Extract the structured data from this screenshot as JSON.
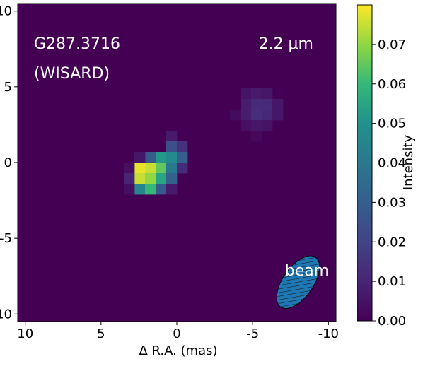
{
  "chart_data": {
    "type": "heatmap",
    "title": "",
    "annotations": {
      "source": "G287.3716",
      "instrument": "(WISARD)",
      "wavelength": "2.2 μm",
      "beam_label": "beam"
    },
    "xlabel": "Δ R.A. (mas)",
    "ylabel": "",
    "xlim": [
      10.5,
      -10.5
    ],
    "ylim": [
      -10.5,
      10.5
    ],
    "x_ticks": [
      10,
      5,
      0,
      -5,
      -10
    ],
    "y_ticks": [
      10,
      5,
      0,
      -5,
      -10
    ],
    "x_tick_labels": [
      "10",
      "5",
      "0",
      "-5",
      "-10"
    ],
    "y_tick_labels": [
      "10",
      "5",
      "0",
      "-5",
      "-10"
    ],
    "pixel_size_mas": 0.7,
    "colormap": "viridis",
    "colorbar": {
      "label": "Intensity",
      "min": 0.0,
      "max": 0.08,
      "ticks": [
        0.0,
        0.01,
        0.02,
        0.03,
        0.04,
        0.05,
        0.06,
        0.07
      ],
      "tick_labels": [
        "0.00",
        "0.01",
        "0.02",
        "0.03",
        "0.04",
        "0.05",
        "0.06",
        "0.07"
      ]
    },
    "pixels": [
      {
        "x": 0.35,
        "y": 1.75,
        "v": 0.007
      },
      {
        "x": 0.35,
        "y": 1.05,
        "v": 0.024
      },
      {
        "x": -0.35,
        "y": 1.05,
        "v": 0.014
      },
      {
        "x": 1.05,
        "y": 0.35,
        "v": 0.052
      },
      {
        "x": 0.35,
        "y": 0.35,
        "v": 0.047
      },
      {
        "x": -0.35,
        "y": 0.35,
        "v": 0.03
      },
      {
        "x": 1.75,
        "y": 0.35,
        "v": 0.028
      },
      {
        "x": 2.45,
        "y": 0.35,
        "v": 0.006
      },
      {
        "x": 1.75,
        "y": -0.35,
        "v": 0.075
      },
      {
        "x": 1.05,
        "y": -0.35,
        "v": 0.065
      },
      {
        "x": 2.45,
        "y": -0.35,
        "v": 0.078
      },
      {
        "x": 0.35,
        "y": -0.35,
        "v": 0.04
      },
      {
        "x": -0.35,
        "y": -0.35,
        "v": 0.012
      },
      {
        "x": 3.15,
        "y": -0.35,
        "v": 0.004
      },
      {
        "x": 2.45,
        "y": -1.05,
        "v": 0.075
      },
      {
        "x": 1.75,
        "y": -1.05,
        "v": 0.07
      },
      {
        "x": 1.05,
        "y": -1.05,
        "v": 0.055
      },
      {
        "x": 0.35,
        "y": -1.05,
        "v": 0.03
      },
      {
        "x": 3.15,
        "y": -1.05,
        "v": 0.01
      },
      {
        "x": 2.45,
        "y": -1.75,
        "v": 0.045
      },
      {
        "x": 1.75,
        "y": -1.75,
        "v": 0.06
      },
      {
        "x": 1.05,
        "y": -1.75,
        "v": 0.028
      },
      {
        "x": 0.35,
        "y": -1.75,
        "v": 0.007
      },
      {
        "x": 3.15,
        "y": -1.75,
        "v": 0.004
      },
      {
        "x": -4.55,
        "y": 4.55,
        "v": 0.005
      },
      {
        "x": -5.25,
        "y": 4.55,
        "v": 0.007
      },
      {
        "x": -5.95,
        "y": 4.55,
        "v": 0.006
      },
      {
        "x": -4.55,
        "y": 3.85,
        "v": 0.008
      },
      {
        "x": -5.25,
        "y": 3.85,
        "v": 0.012
      },
      {
        "x": -5.95,
        "y": 3.85,
        "v": 0.012
      },
      {
        "x": -6.65,
        "y": 3.85,
        "v": 0.006
      },
      {
        "x": -4.55,
        "y": 3.15,
        "v": 0.008
      },
      {
        "x": -5.25,
        "y": 3.15,
        "v": 0.013
      },
      {
        "x": -5.95,
        "y": 3.15,
        "v": 0.011
      },
      {
        "x": -6.65,
        "y": 3.15,
        "v": 0.006
      },
      {
        "x": -3.85,
        "y": 3.15,
        "v": 0.003
      },
      {
        "x": -5.25,
        "y": 2.45,
        "v": 0.006
      },
      {
        "x": -5.95,
        "y": 2.45,
        "v": 0.005
      },
      {
        "x": -4.55,
        "y": 2.45,
        "v": 0.004
      },
      {
        "x": -5.25,
        "y": 1.75,
        "v": 0.002
      }
    ],
    "beam": {
      "center_x": -8.0,
      "center_y": -7.9,
      "major_axis_mas": 4.0,
      "minor_axis_mas": 2.0,
      "fill_color": "#1f77b4",
      "hatch": "diagonal"
    }
  }
}
